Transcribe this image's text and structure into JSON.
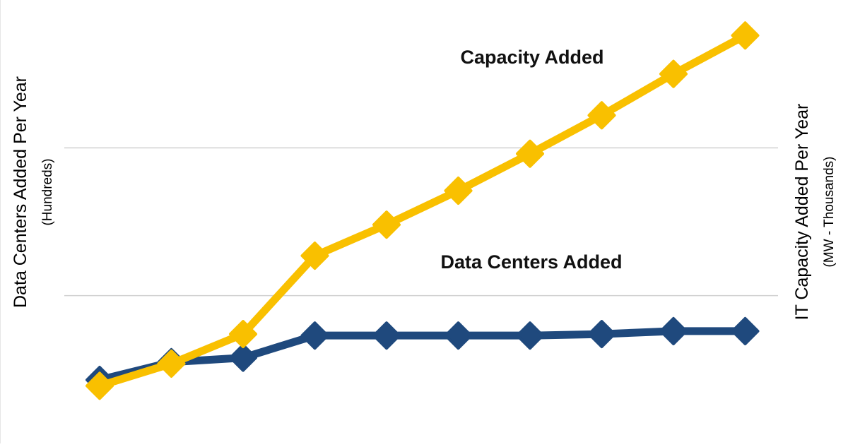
{
  "chart_data": {
    "type": "line",
    "x": [
      1,
      2,
      3,
      4,
      5,
      6,
      7,
      8,
      9,
      10
    ],
    "left_axis": {
      "label": "Data Centers Added Per Year",
      "sublabel": "(Hundreds)"
    },
    "right_axis": {
      "label": "IT Capacity Added Per Year",
      "sublabel": "(MW - Thousands)"
    },
    "ylim": [
      0,
      3
    ],
    "gridlines": [
      1,
      2
    ],
    "grid": true,
    "legend": "none",
    "series": [
      {
        "name": "Capacity Added",
        "color": "#F9C000",
        "values": [
          0.39,
          0.54,
          0.74,
          1.27,
          1.48,
          1.71,
          1.96,
          2.22,
          2.5,
          2.76
        ]
      },
      {
        "name": "Data Centers Added",
        "color": "#1F497D",
        "values": [
          0.43,
          0.55,
          0.58,
          0.73,
          0.73,
          0.73,
          0.73,
          0.74,
          0.76,
          0.76
        ]
      }
    ],
    "colors": {
      "grid": "#d0d0d0",
      "axis_text": "#000000"
    }
  }
}
